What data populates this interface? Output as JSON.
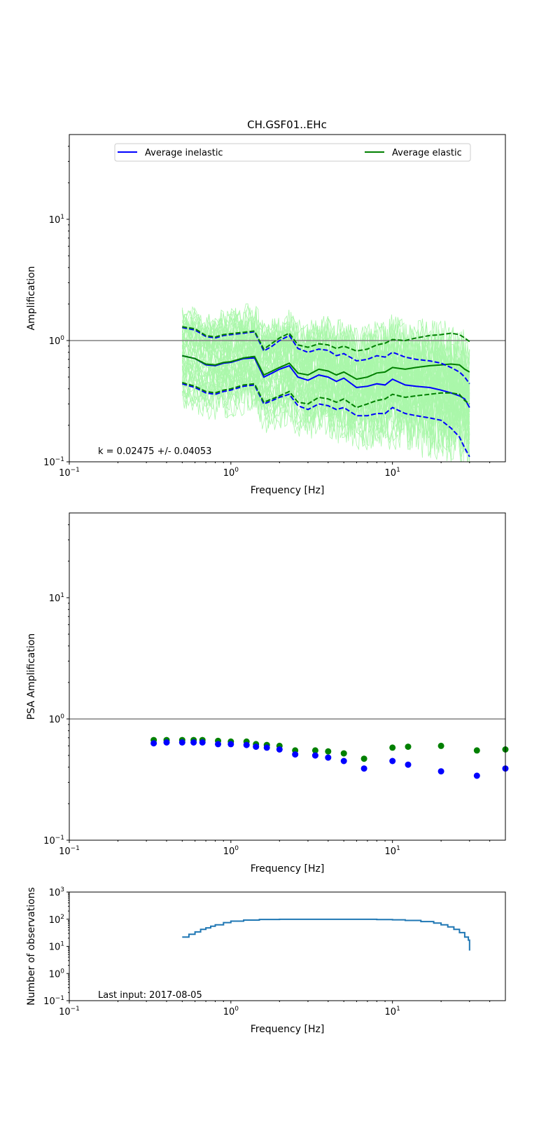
{
  "figure": {
    "title": "CH.GSF01..EHc"
  },
  "colors": {
    "inelastic": "#0000ff",
    "elastic": "#008000",
    "individual": "#aaf7aa",
    "count": "#1f77b4",
    "reference": "#808080"
  },
  "chart_data": [
    {
      "id": "amplification",
      "type": "line",
      "xscale": "log",
      "yscale": "log",
      "xlim": [
        0.1,
        50
      ],
      "ylim": [
        0.1,
        50
      ],
      "xlabel": "Frequency [Hz]",
      "ylabel": "Amplification",
      "xticks": [
        {
          "value": 0.1,
          "base": "10",
          "exp": "−1"
        },
        {
          "value": 1,
          "base": "10",
          "exp": "0"
        },
        {
          "value": 10,
          "base": "10",
          "exp": "1"
        }
      ],
      "yticks": [
        {
          "value": 0.1,
          "base": "10",
          "exp": "−1"
        },
        {
          "value": 1,
          "base": "10",
          "exp": "0"
        },
        {
          "value": 10,
          "base": "10",
          "exp": "1"
        }
      ],
      "reference_line": 1,
      "annotation": "k = 0.02475 +/- 0.04053",
      "legend": {
        "position": "top",
        "entries": [
          "Average inelastic",
          "Average elastic"
        ]
      },
      "x": [
        0.5,
        0.6,
        0.7,
        0.8,
        0.9,
        1.0,
        1.2,
        1.4,
        1.6,
        1.8,
        2.0,
        2.3,
        2.6,
        3.0,
        3.5,
        4.0,
        4.5,
        5.0,
        6.0,
        7.0,
        8.0,
        9.0,
        10.0,
        12.0,
        14.0,
        17.0,
        20.0,
        23.0,
        26.0,
        28.0,
        30.0
      ],
      "series": [
        {
          "name": "Average inelastic",
          "style": "solid",
          "values": [
            0.75,
            0.71,
            0.63,
            0.62,
            0.65,
            0.66,
            0.71,
            0.72,
            0.5,
            0.54,
            0.58,
            0.62,
            0.5,
            0.47,
            0.52,
            0.5,
            0.46,
            0.49,
            0.41,
            0.42,
            0.44,
            0.43,
            0.48,
            0.43,
            0.42,
            0.41,
            0.39,
            0.37,
            0.35,
            0.33,
            0.28
          ]
        },
        {
          "name": "Average elastic",
          "style": "solid",
          "values": [
            0.75,
            0.71,
            0.64,
            0.63,
            0.66,
            0.67,
            0.72,
            0.74,
            0.52,
            0.56,
            0.6,
            0.65,
            0.54,
            0.52,
            0.58,
            0.56,
            0.52,
            0.55,
            0.48,
            0.5,
            0.54,
            0.55,
            0.6,
            0.58,
            0.6,
            0.62,
            0.63,
            0.64,
            0.63,
            0.58,
            0.55
          ]
        },
        {
          "name": "inelastic +sigma",
          "style": "dashed",
          "values": [
            1.28,
            1.22,
            1.08,
            1.05,
            1.1,
            1.12,
            1.15,
            1.18,
            0.82,
            0.9,
            1.0,
            1.1,
            0.86,
            0.8,
            0.85,
            0.83,
            0.75,
            0.78,
            0.68,
            0.7,
            0.75,
            0.73,
            0.8,
            0.73,
            0.7,
            0.68,
            0.65,
            0.6,
            0.55,
            0.5,
            0.44
          ]
        },
        {
          "name": "elastic +sigma",
          "style": "dashed",
          "values": [
            1.3,
            1.25,
            1.1,
            1.07,
            1.12,
            1.14,
            1.17,
            1.2,
            0.85,
            0.95,
            1.05,
            1.15,
            0.92,
            0.88,
            0.94,
            0.92,
            0.86,
            0.9,
            0.82,
            0.85,
            0.92,
            0.95,
            1.02,
            1.0,
            1.05,
            1.1,
            1.12,
            1.15,
            1.12,
            1.05,
            0.98
          ]
        },
        {
          "name": "inelastic -sigma",
          "style": "dashed",
          "values": [
            0.44,
            0.41,
            0.37,
            0.36,
            0.38,
            0.39,
            0.42,
            0.43,
            0.3,
            0.32,
            0.34,
            0.36,
            0.29,
            0.27,
            0.3,
            0.29,
            0.27,
            0.28,
            0.24,
            0.24,
            0.25,
            0.25,
            0.28,
            0.25,
            0.24,
            0.23,
            0.22,
            0.19,
            0.16,
            0.13,
            0.11
          ]
        },
        {
          "name": "elastic -sigma",
          "style": "dashed",
          "values": [
            0.45,
            0.42,
            0.38,
            0.37,
            0.39,
            0.4,
            0.43,
            0.44,
            0.31,
            0.33,
            0.35,
            0.38,
            0.31,
            0.3,
            0.34,
            0.33,
            0.31,
            0.33,
            0.28,
            0.3,
            0.32,
            0.33,
            0.36,
            0.34,
            0.35,
            0.36,
            0.37,
            0.37,
            0.36,
            0.32,
            0.3
          ]
        }
      ]
    },
    {
      "id": "psa",
      "type": "scatter",
      "xscale": "log",
      "yscale": "log",
      "xlim": [
        0.1,
        50
      ],
      "ylim": [
        0.1,
        50
      ],
      "xlabel": "Frequency [Hz]",
      "ylabel": "PSA Amplification",
      "xticks": [
        {
          "value": 0.1,
          "base": "10",
          "exp": "−1"
        },
        {
          "value": 1,
          "base": "10",
          "exp": "0"
        },
        {
          "value": 10,
          "base": "10",
          "exp": "1"
        }
      ],
      "yticks": [
        {
          "value": 0.1,
          "base": "10",
          "exp": "−1"
        },
        {
          "value": 1,
          "base": "10",
          "exp": "0"
        },
        {
          "value": 10,
          "base": "10",
          "exp": "1"
        }
      ],
      "reference_line": 1,
      "x": [
        0.333,
        0.4,
        0.5,
        0.588,
        0.667,
        0.833,
        1.0,
        1.25,
        1.43,
        1.67,
        2.0,
        2.5,
        3.33,
        4.0,
        5.0,
        6.67,
        10.0,
        12.5,
        20.0,
        33.3,
        50.0
      ],
      "series": [
        {
          "name": "inelastic",
          "values": [
            0.63,
            0.64,
            0.64,
            0.64,
            0.64,
            0.62,
            0.62,
            0.61,
            0.59,
            0.58,
            0.56,
            0.51,
            0.5,
            0.48,
            0.45,
            0.39,
            0.45,
            0.42,
            0.37,
            0.34,
            0.39
          ]
        },
        {
          "name": "elastic",
          "values": [
            0.67,
            0.67,
            0.67,
            0.67,
            0.67,
            0.66,
            0.65,
            0.65,
            0.62,
            0.61,
            0.6,
            0.55,
            0.55,
            0.54,
            0.52,
            0.47,
            0.58,
            0.59,
            0.6,
            0.55,
            0.56
          ]
        }
      ]
    },
    {
      "id": "observations",
      "type": "line",
      "xscale": "log",
      "yscale": "log",
      "xlim": [
        0.1,
        50
      ],
      "ylim": [
        0.1,
        1000
      ],
      "xlabel": "Frequency [Hz]",
      "ylabel": "Number of observations",
      "xticks": [
        {
          "value": 0.1,
          "base": "10",
          "exp": "−1"
        },
        {
          "value": 1,
          "base": "10",
          "exp": "0"
        },
        {
          "value": 10,
          "base": "10",
          "exp": "1"
        }
      ],
      "yticks": [
        {
          "value": 0.1,
          "base": "10",
          "exp": "−1"
        },
        {
          "value": 1,
          "base": "10",
          "exp": "0"
        },
        {
          "value": 10,
          "base": "10",
          "exp": "1"
        },
        {
          "value": 100,
          "base": "10",
          "exp": "2"
        },
        {
          "value": 1000,
          "base": "10",
          "exp": "3"
        }
      ],
      "annotation": "Last input: 2017-08-05",
      "x": [
        0.5,
        0.55,
        0.6,
        0.65,
        0.7,
        0.75,
        0.8,
        0.9,
        1.0,
        1.2,
        1.5,
        2.0,
        3.0,
        5.0,
        7.0,
        8.0,
        10.0,
        12.0,
        15.0,
        18.0,
        20.0,
        22.0,
        24.0,
        26.0,
        28.0,
        29.5,
        30.0
      ],
      "series": [
        {
          "name": "count",
          "values": [
            22,
            28,
            34,
            42,
            48,
            55,
            62,
            75,
            85,
            93,
            98,
            99,
            99,
            99,
            99,
            97,
            95,
            90,
            82,
            72,
            62,
            52,
            42,
            32,
            22,
            17,
            7
          ]
        }
      ]
    }
  ]
}
